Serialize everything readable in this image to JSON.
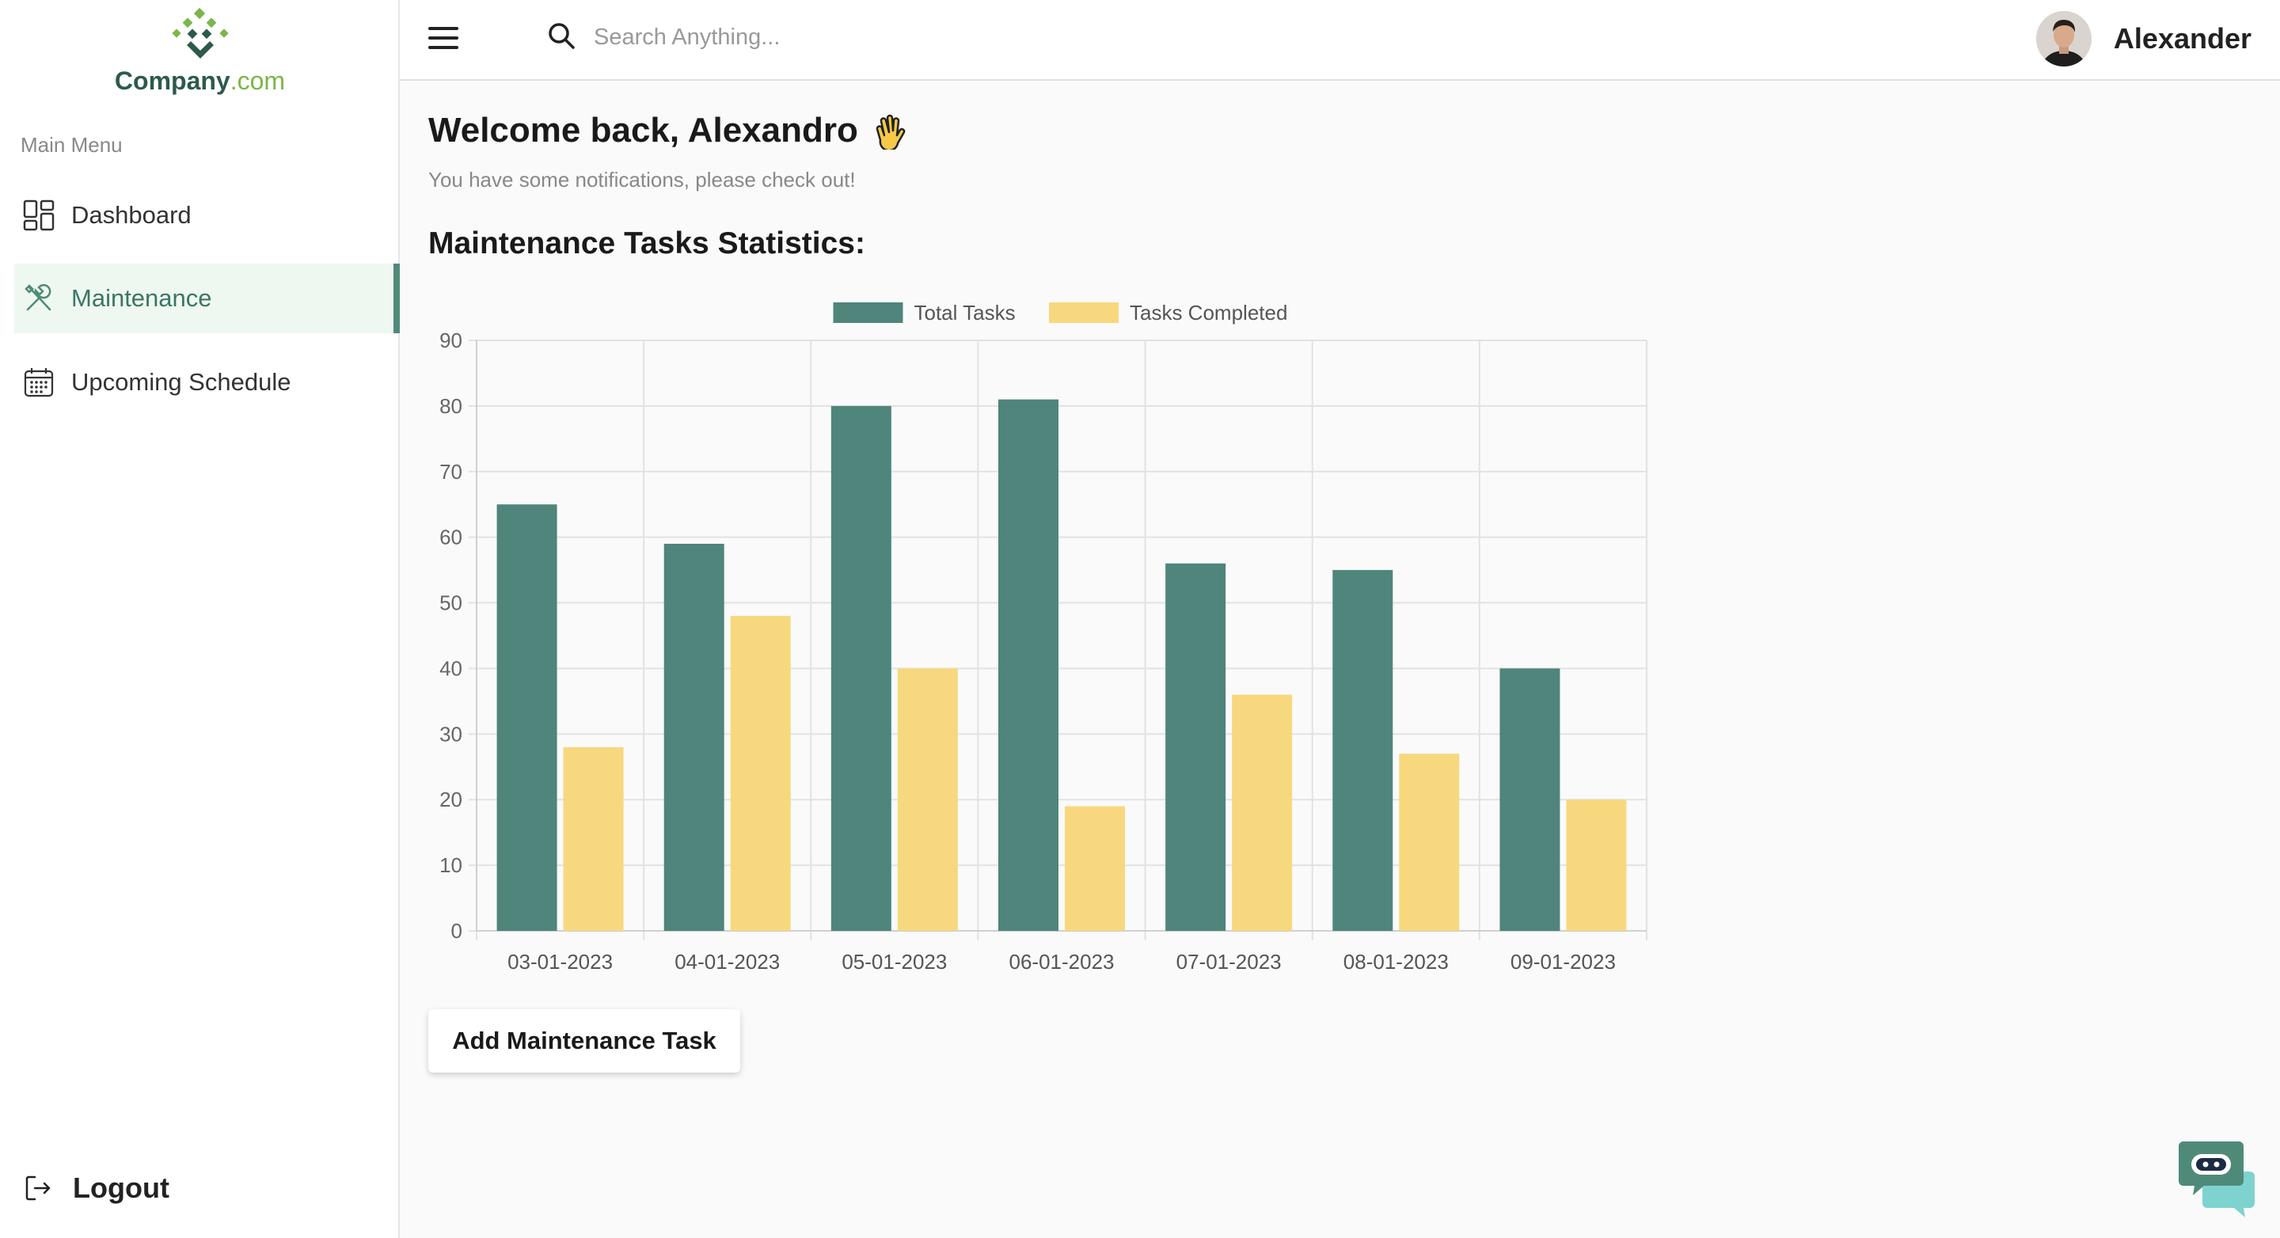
{
  "brand": {
    "name": "Company",
    "domain": ".com",
    "primary": "#4f8a79",
    "accent": "#7ab648"
  },
  "sidebar": {
    "menu_title": "Main Menu",
    "items": [
      {
        "label": "Dashboard",
        "icon": "dashboard-icon",
        "active": false
      },
      {
        "label": "Maintenance",
        "icon": "tools-icon",
        "active": true
      },
      {
        "label": "Upcoming Schedule",
        "icon": "calendar-icon",
        "active": false
      }
    ],
    "logout_label": "Logout"
  },
  "header": {
    "search_placeholder": "Search Anything...",
    "user_name": "Alexander"
  },
  "main": {
    "welcome": "Welcome back, Alexandro",
    "subtitle": "You have some notifications, please check out!",
    "section_title": "Maintenance Tasks Statistics:",
    "add_button": "Add Maintenance Task"
  },
  "chart_data": {
    "type": "bar",
    "categories": [
      "03-01-2023",
      "04-01-2023",
      "05-01-2023",
      "06-01-2023",
      "07-01-2023",
      "08-01-2023",
      "09-01-2023"
    ],
    "series": [
      {
        "name": "Total Tasks",
        "values": [
          65,
          59,
          80,
          81,
          56,
          55,
          40
        ],
        "color": "#4f857b"
      },
      {
        "name": "Tasks Completed",
        "values": [
          28,
          48,
          40,
          19,
          36,
          27,
          20
        ],
        "color": "#f8d87e"
      }
    ],
    "ylim": [
      0,
      90
    ],
    "yticks": [
      0,
      10,
      20,
      30,
      40,
      50,
      60,
      70,
      80,
      90
    ],
    "legend": "top-center",
    "grid": true
  }
}
